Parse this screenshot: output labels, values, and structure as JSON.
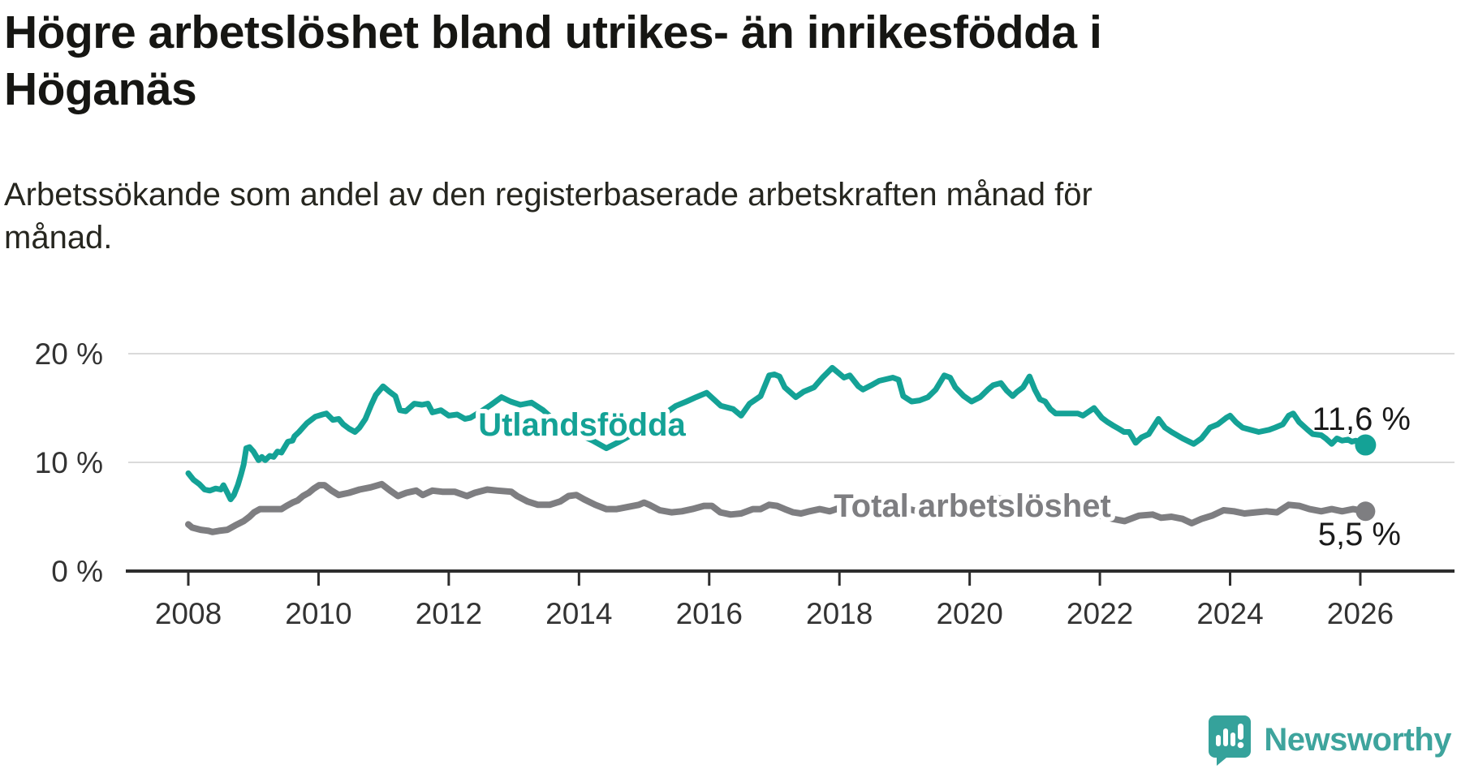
{
  "header": {
    "title_line1": "Högre arbetslöshet bland utrikes- än inrikesfödda i",
    "title_line2": "Höganäs",
    "subtitle_line1": "Arbetssökande som andel av den registerbaserade arbetskraften månad för",
    "subtitle_line2": "månad."
  },
  "footer": {
    "logo_text": "Newsworthy"
  },
  "colors": {
    "foreign_born_line": "#14a296",
    "total_line": "#7e7e81",
    "axis": "#2d2d2d",
    "gridline": "#dadada",
    "tick_text": "#333333",
    "value_label_text": "#1a1a1a",
    "logo_teal": "#35a29b"
  },
  "chart_data": {
    "type": "line",
    "title": "Högre arbetslöshet bland utrikes- än inrikesfödda i Höganäs",
    "subtitle": "Arbetssökande som andel av den registerbaserade arbetskraften månad för månad.",
    "xlabel": "",
    "ylabel": "",
    "xlim": [
      2007.9,
      2026.45
    ],
    "ylim": [
      0,
      21.5
    ],
    "grid": "horizontal",
    "legend_position": "inline-labels",
    "x_ticks": [
      2008,
      2010,
      2012,
      2014,
      2016,
      2018,
      2020,
      2022,
      2024,
      2026
    ],
    "y_ticks": [
      {
        "value": 0,
        "label": "0 %"
      },
      {
        "value": 10,
        "label": "10 %"
      },
      {
        "value": 20,
        "label": "20 %"
      }
    ],
    "series": [
      {
        "name": "Utlandsfödda",
        "color": "#14a296",
        "end_label": "11,6 %",
        "end_value": 11.6,
        "points": [
          [
            2008.0,
            9.0
          ],
          [
            2008.08,
            8.4
          ],
          [
            2008.17,
            8.0
          ],
          [
            2008.25,
            7.5
          ],
          [
            2008.33,
            7.4
          ],
          [
            2008.42,
            7.6
          ],
          [
            2008.5,
            7.5
          ],
          [
            2008.54,
            7.9
          ],
          [
            2008.6,
            7.2
          ],
          [
            2008.65,
            6.6
          ],
          [
            2008.7,
            7.0
          ],
          [
            2008.76,
            7.9
          ],
          [
            2008.81,
            8.9
          ],
          [
            2008.85,
            9.8
          ],
          [
            2008.89,
            11.3
          ],
          [
            2008.94,
            11.4
          ],
          [
            2009.0,
            11.0
          ],
          [
            2009.08,
            10.2
          ],
          [
            2009.13,
            10.5
          ],
          [
            2009.18,
            10.2
          ],
          [
            2009.25,
            10.6
          ],
          [
            2009.31,
            10.5
          ],
          [
            2009.37,
            11.0
          ],
          [
            2009.43,
            10.9
          ],
          [
            2009.47,
            11.3
          ],
          [
            2009.53,
            11.9
          ],
          [
            2009.6,
            12.0
          ],
          [
            2009.63,
            12.4
          ],
          [
            2009.7,
            12.8
          ],
          [
            2009.76,
            13.2
          ],
          [
            2009.82,
            13.6
          ],
          [
            2009.95,
            14.2
          ],
          [
            2010.06,
            14.4
          ],
          [
            2010.12,
            14.5
          ],
          [
            2010.22,
            13.9
          ],
          [
            2010.31,
            14.0
          ],
          [
            2010.38,
            13.5
          ],
          [
            2010.47,
            13.1
          ],
          [
            2010.56,
            12.8
          ],
          [
            2010.63,
            13.2
          ],
          [
            2010.72,
            14.0
          ],
          [
            2010.81,
            15.3
          ],
          [
            2010.88,
            16.2
          ],
          [
            2010.99,
            17.0
          ],
          [
            2011.09,
            16.5
          ],
          [
            2011.18,
            16.1
          ],
          [
            2011.25,
            14.8
          ],
          [
            2011.34,
            14.7
          ],
          [
            2011.47,
            15.4
          ],
          [
            2011.59,
            15.3
          ],
          [
            2011.68,
            15.4
          ],
          [
            2011.75,
            14.6
          ],
          [
            2011.88,
            14.8
          ],
          [
            2012.0,
            14.3
          ],
          [
            2012.13,
            14.4
          ],
          [
            2012.25,
            14.0
          ],
          [
            2012.33,
            14.1
          ],
          [
            2012.5,
            14.7
          ],
          [
            2012.65,
            15.3
          ],
          [
            2012.81,
            16.0
          ],
          [
            2012.95,
            15.6
          ],
          [
            2013.1,
            15.3
          ],
          [
            2013.27,
            15.5
          ],
          [
            2013.45,
            14.8
          ],
          [
            2013.6,
            14.0
          ],
          [
            2013.8,
            13.2
          ],
          [
            2014.0,
            12.6
          ],
          [
            2014.21,
            12.0
          ],
          [
            2014.42,
            11.3
          ],
          [
            2014.62,
            11.9
          ],
          [
            2014.8,
            12.5
          ],
          [
            2015.0,
            13.1
          ],
          [
            2015.25,
            14.2
          ],
          [
            2015.49,
            15.2
          ],
          [
            2015.65,
            15.6
          ],
          [
            2015.8,
            16.0
          ],
          [
            2015.96,
            16.4
          ],
          [
            2016.18,
            15.2
          ],
          [
            2016.37,
            14.9
          ],
          [
            2016.49,
            14.3
          ],
          [
            2016.62,
            15.4
          ],
          [
            2016.79,
            16.1
          ],
          [
            2016.92,
            18.0
          ],
          [
            2017.0,
            18.1
          ],
          [
            2017.08,
            17.9
          ],
          [
            2017.16,
            16.9
          ],
          [
            2017.33,
            16.0
          ],
          [
            2017.45,
            16.5
          ],
          [
            2017.61,
            16.9
          ],
          [
            2017.74,
            17.8
          ],
          [
            2017.89,
            18.7
          ],
          [
            2017.99,
            18.2
          ],
          [
            2018.07,
            17.8
          ],
          [
            2018.16,
            18.0
          ],
          [
            2018.29,
            17.0
          ],
          [
            2018.36,
            16.7
          ],
          [
            2018.49,
            17.1
          ],
          [
            2018.61,
            17.5
          ],
          [
            2018.82,
            17.8
          ],
          [
            2018.91,
            17.6
          ],
          [
            2018.98,
            16.1
          ],
          [
            2019.11,
            15.6
          ],
          [
            2019.23,
            15.7
          ],
          [
            2019.36,
            16.0
          ],
          [
            2019.48,
            16.7
          ],
          [
            2019.61,
            18.0
          ],
          [
            2019.7,
            17.8
          ],
          [
            2019.78,
            16.9
          ],
          [
            2019.91,
            16.1
          ],
          [
            2020.03,
            15.6
          ],
          [
            2020.16,
            16.0
          ],
          [
            2020.28,
            16.7
          ],
          [
            2020.36,
            17.1
          ],
          [
            2020.48,
            17.3
          ],
          [
            2020.57,
            16.6
          ],
          [
            2020.66,
            16.1
          ],
          [
            2020.73,
            16.5
          ],
          [
            2020.82,
            16.9
          ],
          [
            2020.92,
            17.9
          ],
          [
            2021.0,
            16.7
          ],
          [
            2021.08,
            15.8
          ],
          [
            2021.16,
            15.6
          ],
          [
            2021.24,
            14.9
          ],
          [
            2021.32,
            14.5
          ],
          [
            2021.49,
            14.5
          ],
          [
            2021.66,
            14.5
          ],
          [
            2021.74,
            14.3
          ],
          [
            2021.91,
            15.0
          ],
          [
            2022.03,
            14.1
          ],
          [
            2022.12,
            13.7
          ],
          [
            2022.2,
            13.4
          ],
          [
            2022.29,
            13.1
          ],
          [
            2022.37,
            12.8
          ],
          [
            2022.45,
            12.8
          ],
          [
            2022.55,
            11.8
          ],
          [
            2022.64,
            12.3
          ],
          [
            2022.75,
            12.6
          ],
          [
            2022.9,
            14.0
          ],
          [
            2023.0,
            13.2
          ],
          [
            2023.1,
            12.8
          ],
          [
            2023.27,
            12.2
          ],
          [
            2023.44,
            11.7
          ],
          [
            2023.56,
            12.2
          ],
          [
            2023.69,
            13.2
          ],
          [
            2023.81,
            13.5
          ],
          [
            2023.94,
            14.1
          ],
          [
            2024.0,
            14.3
          ],
          [
            2024.09,
            13.7
          ],
          [
            2024.19,
            13.2
          ],
          [
            2024.31,
            13.0
          ],
          [
            2024.44,
            12.8
          ],
          [
            2024.6,
            13.0
          ],
          [
            2024.69,
            13.2
          ],
          [
            2024.81,
            13.5
          ],
          [
            2024.9,
            14.3
          ],
          [
            2024.97,
            14.5
          ],
          [
            2025.06,
            13.7
          ],
          [
            2025.19,
            13.0
          ],
          [
            2025.27,
            12.6
          ],
          [
            2025.4,
            12.5
          ],
          [
            2025.47,
            12.2
          ],
          [
            2025.56,
            11.7
          ],
          [
            2025.64,
            12.2
          ],
          [
            2025.72,
            12.0
          ],
          [
            2025.81,
            12.1
          ],
          [
            2025.87,
            11.9
          ],
          [
            2025.93,
            12.0
          ],
          [
            2026.08,
            11.6
          ]
        ]
      },
      {
        "name": "Total arbetslöshet",
        "color": "#7e7e81",
        "end_label": "5,5 %",
        "end_value": 5.5,
        "points": [
          [
            2008.0,
            4.3
          ],
          [
            2008.06,
            4.0
          ],
          [
            2008.19,
            3.8
          ],
          [
            2008.31,
            3.7
          ],
          [
            2008.37,
            3.6
          ],
          [
            2008.47,
            3.7
          ],
          [
            2008.6,
            3.8
          ],
          [
            2008.72,
            4.2
          ],
          [
            2008.85,
            4.6
          ],
          [
            2008.94,
            5.0
          ],
          [
            2009.01,
            5.4
          ],
          [
            2009.1,
            5.7
          ],
          [
            2009.26,
            5.7
          ],
          [
            2009.43,
            5.7
          ],
          [
            2009.51,
            6.0
          ],
          [
            2009.6,
            6.3
          ],
          [
            2009.68,
            6.5
          ],
          [
            2009.76,
            6.9
          ],
          [
            2009.85,
            7.2
          ],
          [
            2009.93,
            7.6
          ],
          [
            2010.01,
            7.9
          ],
          [
            2010.09,
            7.9
          ],
          [
            2010.2,
            7.4
          ],
          [
            2010.31,
            7.0
          ],
          [
            2010.47,
            7.2
          ],
          [
            2010.63,
            7.5
          ],
          [
            2010.8,
            7.7
          ],
          [
            2010.97,
            8.0
          ],
          [
            2011.1,
            7.4
          ],
          [
            2011.22,
            6.9
          ],
          [
            2011.35,
            7.2
          ],
          [
            2011.5,
            7.4
          ],
          [
            2011.6,
            7.0
          ],
          [
            2011.75,
            7.4
          ],
          [
            2011.9,
            7.3
          ],
          [
            2012.09,
            7.3
          ],
          [
            2012.28,
            6.9
          ],
          [
            2012.4,
            7.2
          ],
          [
            2012.59,
            7.5
          ],
          [
            2012.75,
            7.4
          ],
          [
            2012.96,
            7.3
          ],
          [
            2013.05,
            6.9
          ],
          [
            2013.21,
            6.4
          ],
          [
            2013.37,
            6.1
          ],
          [
            2013.55,
            6.1
          ],
          [
            2013.71,
            6.4
          ],
          [
            2013.84,
            6.9
          ],
          [
            2013.96,
            7.0
          ],
          [
            2014.08,
            6.6
          ],
          [
            2014.25,
            6.1
          ],
          [
            2014.42,
            5.7
          ],
          [
            2014.58,
            5.7
          ],
          [
            2014.75,
            5.9
          ],
          [
            2014.92,
            6.1
          ],
          [
            2015.0,
            6.3
          ],
          [
            2015.08,
            6.1
          ],
          [
            2015.24,
            5.6
          ],
          [
            2015.42,
            5.4
          ],
          [
            2015.58,
            5.5
          ],
          [
            2015.74,
            5.7
          ],
          [
            2015.92,
            6.0
          ],
          [
            2016.04,
            6.0
          ],
          [
            2016.17,
            5.4
          ],
          [
            2016.33,
            5.2
          ],
          [
            2016.49,
            5.3
          ],
          [
            2016.67,
            5.7
          ],
          [
            2016.79,
            5.7
          ],
          [
            2016.92,
            6.1
          ],
          [
            2017.04,
            6.0
          ],
          [
            2017.16,
            5.7
          ],
          [
            2017.29,
            5.4
          ],
          [
            2017.41,
            5.3
          ],
          [
            2017.54,
            5.5
          ],
          [
            2017.7,
            5.7
          ],
          [
            2017.85,
            5.5
          ],
          [
            2018.0,
            5.8
          ],
          [
            2018.2,
            5.4
          ],
          [
            2018.4,
            5.3
          ],
          [
            2018.6,
            5.4
          ],
          [
            2018.8,
            5.6
          ],
          [
            2019.0,
            5.8
          ],
          [
            2019.2,
            5.5
          ],
          [
            2019.4,
            5.4
          ],
          [
            2019.6,
            5.6
          ],
          [
            2019.8,
            5.8
          ],
          [
            2020.0,
            5.9
          ],
          [
            2020.2,
            6.3
          ],
          [
            2020.4,
            6.7
          ],
          [
            2020.6,
            6.6
          ],
          [
            2020.8,
            6.5
          ],
          [
            2021.0,
            6.4
          ],
          [
            2021.2,
            6.1
          ],
          [
            2021.4,
            5.8
          ],
          [
            2021.6,
            5.6
          ],
          [
            2021.8,
            5.3
          ],
          [
            2022.0,
            5.1
          ],
          [
            2022.2,
            4.8
          ],
          [
            2022.38,
            4.6
          ],
          [
            2022.6,
            5.1
          ],
          [
            2022.81,
            5.2
          ],
          [
            2022.94,
            4.9
          ],
          [
            2023.1,
            5.0
          ],
          [
            2023.27,
            4.8
          ],
          [
            2023.41,
            4.4
          ],
          [
            2023.56,
            4.8
          ],
          [
            2023.72,
            5.1
          ],
          [
            2023.9,
            5.6
          ],
          [
            2024.06,
            5.5
          ],
          [
            2024.22,
            5.3
          ],
          [
            2024.39,
            5.4
          ],
          [
            2024.56,
            5.5
          ],
          [
            2024.72,
            5.4
          ],
          [
            2024.9,
            6.1
          ],
          [
            2025.06,
            6.0
          ],
          [
            2025.22,
            5.7
          ],
          [
            2025.4,
            5.5
          ],
          [
            2025.56,
            5.7
          ],
          [
            2025.72,
            5.5
          ],
          [
            2025.89,
            5.7
          ],
          [
            2026.08,
            5.5
          ]
        ]
      }
    ]
  }
}
